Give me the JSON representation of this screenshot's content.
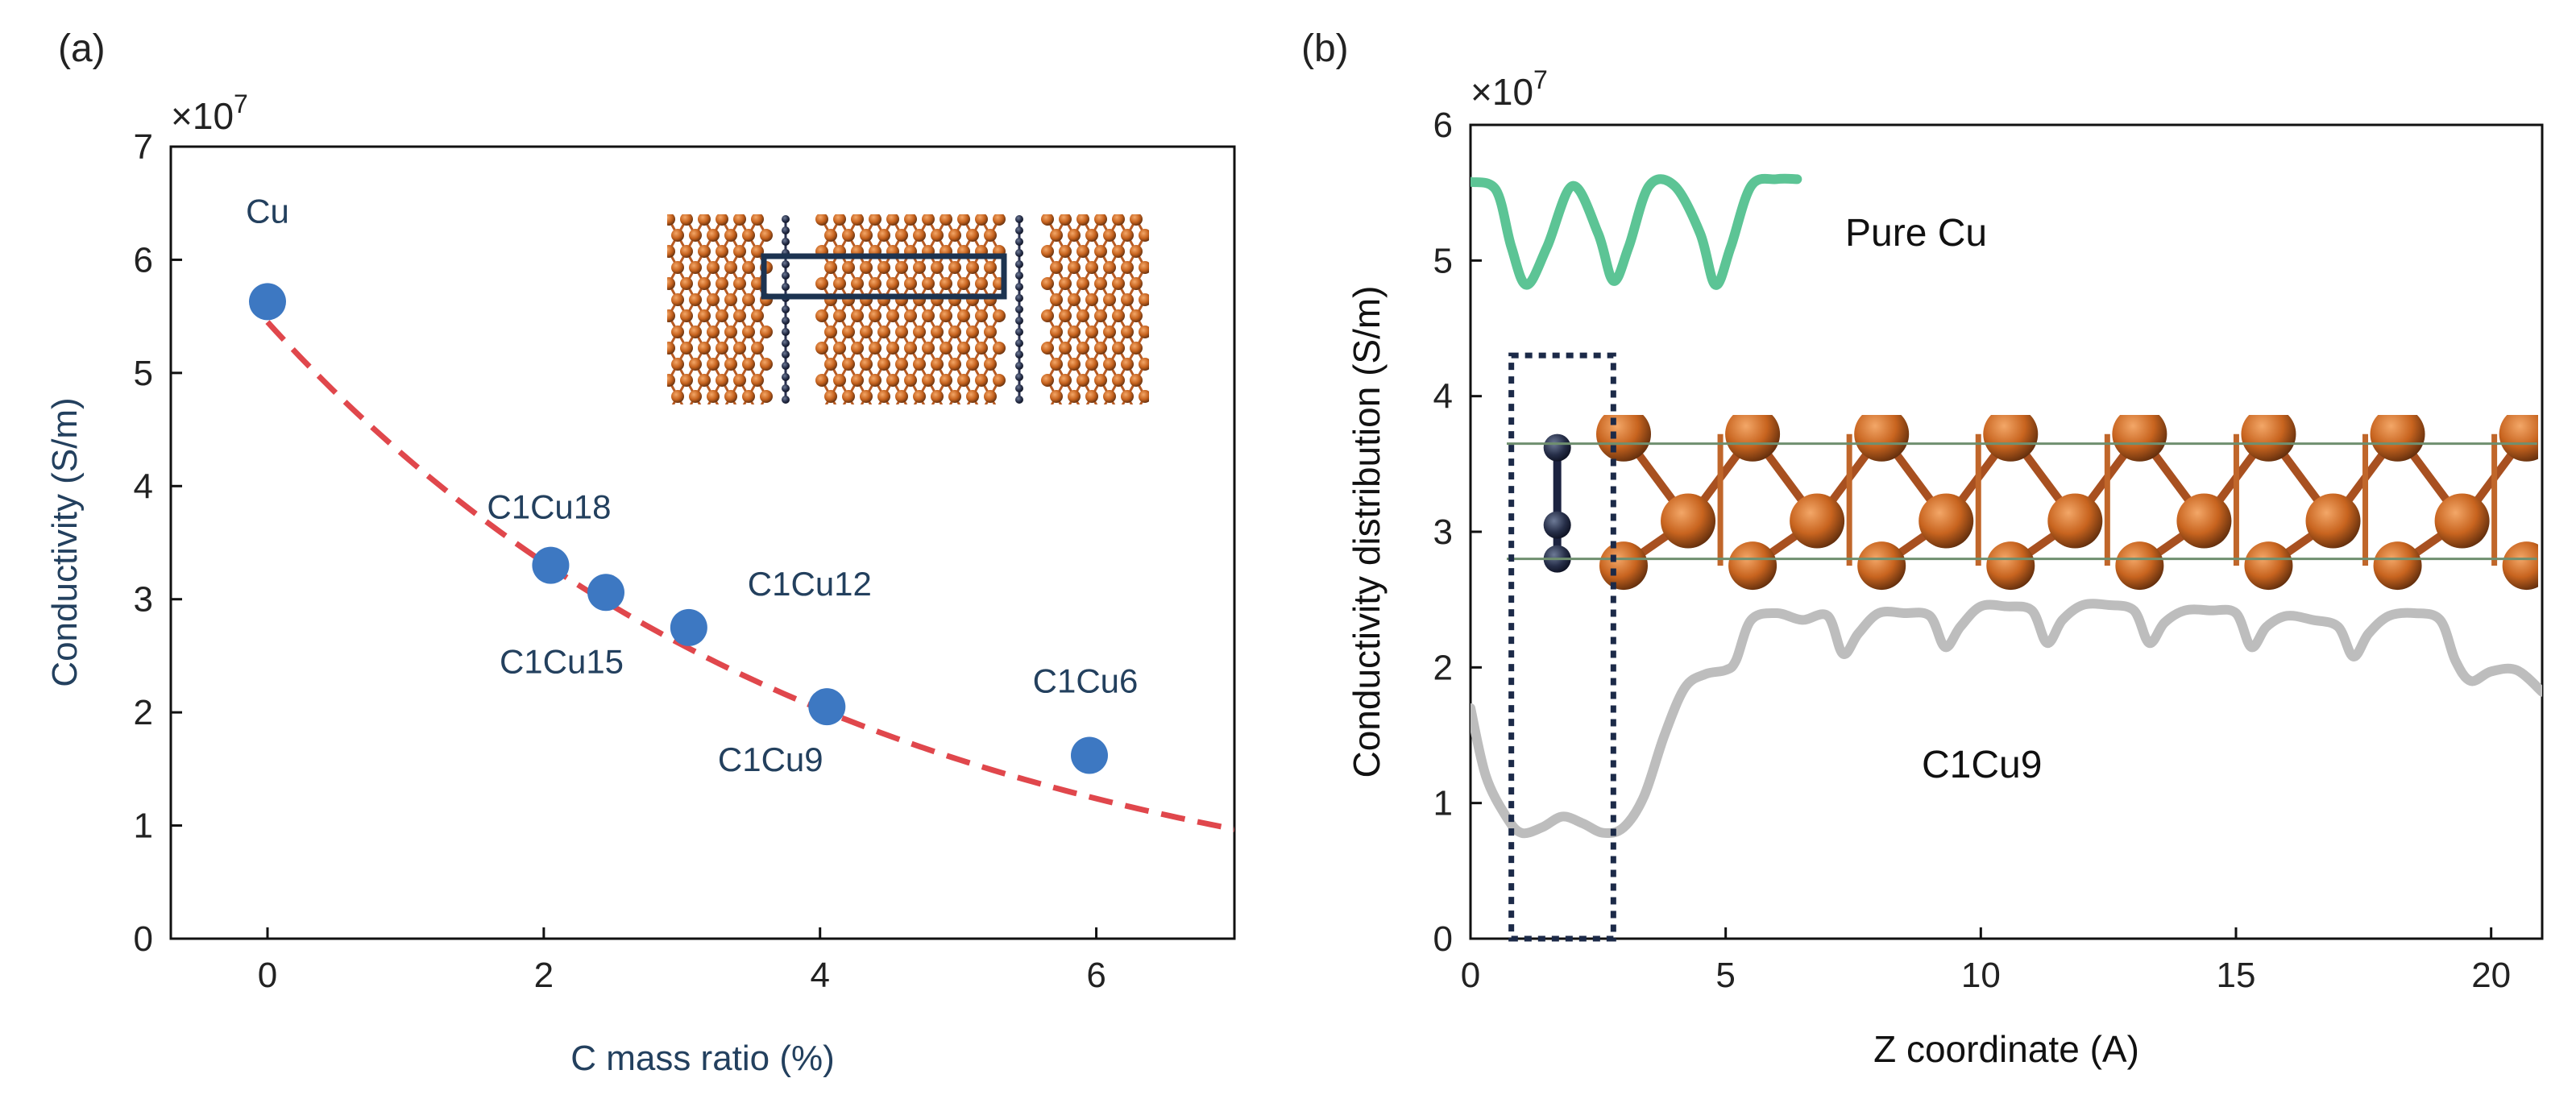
{
  "chart_data": [
    {
      "panel_label": "(a)",
      "type": "scatter",
      "title": "",
      "xlabel": "C mass ratio (%)",
      "ylabel": "Conductivity (S/m)",
      "y_multiplier": "×10^7",
      "y_multiplier_base": "×10",
      "y_multiplier_exp": "7",
      "xlim": [
        -0.7,
        7
      ],
      "ylim": [
        0,
        7
      ],
      "xticks": [
        "0",
        "2",
        "4",
        "6"
      ],
      "yticks": [
        "0",
        "1",
        "2",
        "3",
        "4",
        "5",
        "6",
        "7"
      ],
      "points": [
        {
          "x": 0.0,
          "y": 5.63,
          "label": "Cu"
        },
        {
          "x": 2.05,
          "y": 3.3,
          "label": "C1Cu18"
        },
        {
          "x": 2.45,
          "y": 3.06,
          "label": "C1Cu15"
        },
        {
          "x": 3.05,
          "y": 2.75,
          "label": "C1Cu12"
        },
        {
          "x": 4.05,
          "y": 2.05,
          "label": "C1Cu9"
        },
        {
          "x": 5.95,
          "y": 1.62,
          "label": "C1Cu6"
        }
      ],
      "fit_curve": {
        "type": "exponential",
        "a": 5.45,
        "b": 0.247,
        "x_start": 0,
        "x_end": 7,
        "color": "#e0474c",
        "style": "dashed"
      },
      "marker_color": "#3d78c2",
      "inset": "lattice structure image with highlighted region"
    },
    {
      "panel_label": "(b)",
      "type": "line",
      "title": "",
      "xlabel": "Z coordinate (A)",
      "ylabel": "Conductivity distribution (S/m)",
      "y_multiplier": "×10^7",
      "y_multiplier_base": "×10",
      "y_multiplier_exp": "7",
      "xlim": [
        0,
        21
      ],
      "ylim": [
        0,
        6
      ],
      "xticks": [
        "0",
        "5",
        "10",
        "15",
        "20"
      ],
      "yticks": [
        "0",
        "1",
        "2",
        "3",
        "4",
        "5",
        "6"
      ],
      "series": [
        {
          "name": "Pure Cu",
          "color": "#5cc495",
          "x": [
            0,
            0.5,
            0.8,
            1.1,
            1.5,
            2.0,
            2.5,
            2.8,
            3.1,
            3.5,
            4.0,
            4.5,
            4.8,
            5.1,
            5.5,
            6.0,
            6.4
          ],
          "y": [
            5.58,
            5.52,
            5.1,
            4.82,
            5.1,
            5.55,
            5.2,
            4.85,
            5.1,
            5.55,
            5.55,
            5.2,
            4.82,
            5.1,
            5.55,
            5.6,
            5.6
          ]
        },
        {
          "name": "C1Cu9",
          "color": "#bdbdbd",
          "x": [
            0,
            0.3,
            0.7,
            1.0,
            1.4,
            1.8,
            2.2,
            2.6,
            3.0,
            3.4,
            3.8,
            4.2,
            4.6,
            5.0,
            5.2,
            5.5,
            6.0,
            6.5,
            7.0,
            7.3,
            7.6,
            8.0,
            8.5,
            9.0,
            9.3,
            9.6,
            10.0,
            10.5,
            11.0,
            11.3,
            11.6,
            12.0,
            12.5,
            13.0,
            13.3,
            13.6,
            14.0,
            14.5,
            15.0,
            15.3,
            15.6,
            16.0,
            16.5,
            17.0,
            17.3,
            17.6,
            18.0,
            18.5,
            19.0,
            19.3,
            19.6,
            20.0,
            20.5,
            21.0
          ],
          "y": [
            1.7,
            1.2,
            0.9,
            0.78,
            0.82,
            0.9,
            0.85,
            0.78,
            0.82,
            1.05,
            1.5,
            1.85,
            1.95,
            1.98,
            2.05,
            2.35,
            2.4,
            2.35,
            2.38,
            2.1,
            2.25,
            2.4,
            2.4,
            2.38,
            2.15,
            2.3,
            2.45,
            2.45,
            2.42,
            2.18,
            2.35,
            2.46,
            2.46,
            2.42,
            2.18,
            2.33,
            2.42,
            2.42,
            2.4,
            2.15,
            2.3,
            2.38,
            2.35,
            2.3,
            2.08,
            2.25,
            2.38,
            2.4,
            2.35,
            2.05,
            1.9,
            1.97,
            1.98,
            1.82
          ]
        }
      ],
      "annotations": [
        "Pure Cu",
        "C1Cu9"
      ],
      "highlight_box": {
        "x_range": [
          0.8,
          2.8
        ],
        "y_range": [
          0,
          4.3
        ],
        "style": "dotted"
      },
      "inset": "side view of C-Cu lattice structure"
    }
  ]
}
